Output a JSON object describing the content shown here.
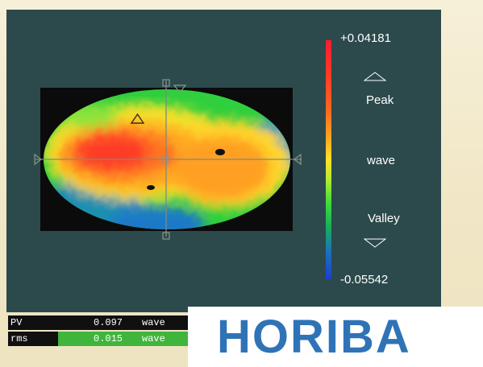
{
  "colorbar": {
    "max_label": "+0.04181",
    "peak_label": "Peak",
    "wave_label": "wave",
    "valley_label": "Valley",
    "min_label": "-0.05542",
    "colors": [
      "#ff1b2e",
      "#ff6a1e",
      "#ffe02a",
      "#3fdc39",
      "#1a74b9",
      "#1e3fd0"
    ]
  },
  "stats": {
    "pv": {
      "name": "PV",
      "value": "0.097",
      "unit": "wave"
    },
    "rms": {
      "name": "rms",
      "value": "0.015",
      "unit": "wave"
    }
  },
  "logo": {
    "text": "HORIBA",
    "color": "#2f73b7"
  },
  "theme": {
    "panel_bg": "#2c4a4c",
    "crosshair": "#7f8a84"
  }
}
